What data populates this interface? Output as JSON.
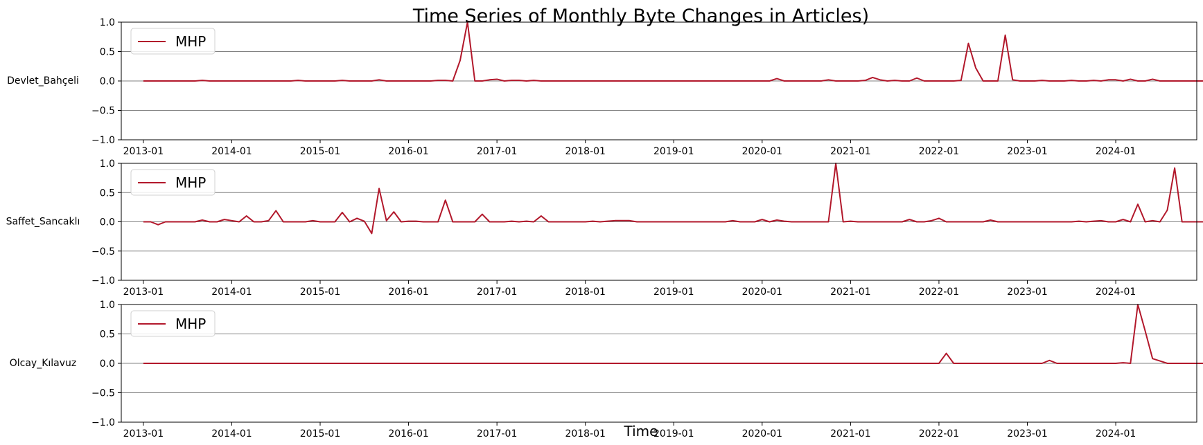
{
  "chart_data": {
    "type": "line",
    "title": "Time Series of Monthly Byte Changes in Articles)",
    "xlabel": "Time",
    "line_color": "#b2182b",
    "gridline_color": "#808080",
    "x_start": "2013-01",
    "x_end": "2024-12",
    "xlim": [
      "2012-10",
      "2024-12"
    ],
    "ylim": [
      -1.0,
      1.0
    ],
    "x_tick_labels": [
      "2013-01",
      "2014-01",
      "2015-01",
      "2016-01",
      "2017-01",
      "2018-01",
      "2019-01",
      "2020-01",
      "2021-01",
      "2022-01",
      "2023-01",
      "2024-01"
    ],
    "y_tick_labels": [
      "1.0",
      "0.5",
      "0.0",
      "−0.5",
      "−1.0"
    ],
    "legend_position": "top-left",
    "panels": [
      {
        "row_label": "Devlet_Bahçeli",
        "series": [
          {
            "name": "MHP",
            "values": [
              0,
              0,
              0,
              0,
              0,
              0,
              0,
              0,
              0.01,
              0,
              0,
              0,
              0,
              0,
              0,
              0,
              0,
              0,
              0,
              0,
              0,
              0.01,
              0,
              0,
              0,
              0,
              0,
              0.01,
              0,
              0,
              0,
              0,
              0.02,
              0,
              0,
              0,
              0,
              0,
              0,
              0,
              0.01,
              0.01,
              0,
              0.35,
              1.0,
              0,
              0,
              0.02,
              0.03,
              0,
              0.01,
              0.01,
              0,
              0.01,
              0,
              0,
              0,
              0,
              0,
              0,
              0,
              0,
              0,
              0,
              0,
              0,
              0,
              0,
              0,
              0,
              0,
              0,
              0,
              0,
              0,
              0,
              0,
              0,
              0,
              0,
              0,
              0,
              0,
              0,
              0,
              0,
              0.04,
              0,
              0,
              0,
              0,
              0,
              0,
              0.02,
              0,
              0,
              0,
              0,
              0.01,
              0.06,
              0.02,
              0,
              0.01,
              0,
              0,
              0.05,
              0,
              0,
              0,
              0,
              0,
              0.01,
              0.64,
              0.22,
              0,
              0,
              0,
              0.78,
              0.02,
              0,
              0,
              0,
              0.01,
              0,
              0,
              0,
              0.01,
              0,
              0,
              0.01,
              0,
              0.02,
              0.02,
              0,
              0.03,
              0,
              0,
              0.03,
              0,
              0,
              0,
              0,
              0,
              0,
              0,
              0,
              0,
              0.01,
              0,
              0,
              0,
              0,
              0,
              0,
              0,
              0
            ]
          }
        ]
      },
      {
        "row_label": "Saffet_Sancaklı",
        "series": [
          {
            "name": "MHP",
            "values": [
              0,
              0,
              -0.05,
              0,
              0,
              0,
              0,
              0,
              0.03,
              0,
              0,
              0.04,
              0.02,
              0,
              0.1,
              0,
              0,
              0.02,
              0.19,
              0,
              0,
              0,
              0,
              0.02,
              0,
              0,
              0,
              0.16,
              0,
              0.06,
              0.01,
              -0.2,
              0.57,
              0.02,
              0.17,
              0,
              0.01,
              0.01,
              0,
              0,
              0,
              0.37,
              0,
              0,
              0,
              0,
              0.13,
              0,
              0,
              0,
              0.01,
              0,
              0.01,
              0,
              0.1,
              0,
              0,
              0,
              0,
              0,
              0,
              0.01,
              0,
              0.01,
              0.02,
              0.02,
              0.02,
              0,
              0,
              0,
              0,
              0,
              0,
              0,
              0,
              0,
              0,
              0,
              0,
              0,
              0.02,
              0,
              0,
              0,
              0.04,
              0,
              0.03,
              0.01,
              0,
              0,
              0,
              0,
              0,
              0,
              1.0,
              0,
              0.01,
              0,
              0,
              0,
              0,
              0,
              0,
              0,
              0.04,
              0,
              0,
              0.02,
              0.06,
              0,
              0,
              0,
              0,
              0,
              0,
              0.03,
              0,
              0,
              0,
              0,
              0,
              0,
              0,
              0,
              0,
              0,
              0,
              0.01,
              0,
              0.01,
              0.02,
              0,
              0,
              0.04,
              0,
              0.3,
              0,
              0.02,
              0,
              0.2,
              0.92,
              0,
              0,
              0,
              0,
              0,
              0,
              0,
              0,
              0,
              0,
              0,
              0,
              0,
              0,
              0
            ]
          }
        ]
      },
      {
        "row_label": "Olcay_Kılavuz",
        "series": [
          {
            "name": "MHP",
            "values": [
              0,
              0,
              0,
              0,
              0,
              0,
              0,
              0,
              0,
              0,
              0,
              0,
              0,
              0,
              0,
              0,
              0,
              0,
              0,
              0,
              0,
              0,
              0,
              0,
              0,
              0,
              0,
              0,
              0,
              0,
              0,
              0,
              0,
              0,
              0,
              0,
              0,
              0,
              0,
              0,
              0,
              0,
              0,
              0,
              0,
              0,
              0,
              0,
              0,
              0,
              0,
              0,
              0,
              0,
              0,
              0,
              0,
              0,
              0,
              0,
              0,
              0,
              0,
              0,
              0,
              0,
              0,
              0,
              0,
              0,
              0,
              0,
              0,
              0,
              0,
              0,
              0,
              0,
              0,
              0,
              0,
              0,
              0,
              0,
              0,
              0,
              0,
              0,
              0,
              0,
              0,
              0,
              0,
              0,
              0,
              0,
              0,
              0,
              0,
              0,
              0,
              0,
              0,
              0,
              0,
              0,
              0,
              0,
              0,
              0.17,
              0,
              0,
              0,
              0,
              0,
              0,
              0,
              0,
              0,
              0,
              0,
              0,
              0,
              0.05,
              0,
              0,
              0,
              0,
              0,
              0,
              0,
              0,
              0,
              0.01,
              0,
              1.0,
              0.55,
              0.08,
              0.04,
              0,
              0,
              0,
              0,
              0,
              0,
              0,
              0,
              0,
              -0.02,
              -0.07,
              0.03,
              0,
              0,
              0,
              0,
              0
            ]
          }
        ]
      }
    ]
  }
}
